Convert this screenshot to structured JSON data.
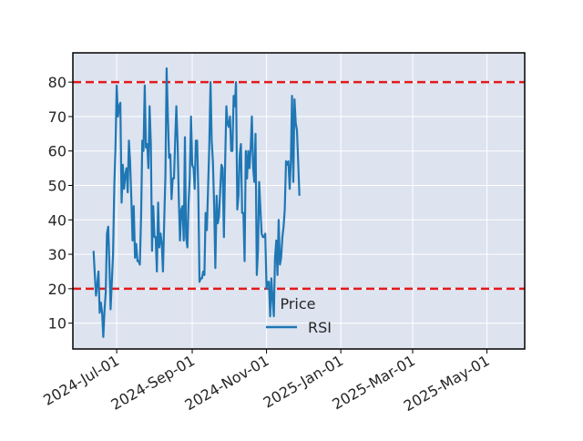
{
  "chart_data": {
    "type": "line",
    "title": "",
    "xlabel": "",
    "ylabel": "",
    "x_ticks": [
      "2024-Jul-01",
      "2024-Sep-01",
      "2024-Nov-01",
      "2025-Jan-01",
      "2025-Mar-01",
      "2025-May-01"
    ],
    "x_tick_dates": [
      "2024-07-01",
      "2024-09-01",
      "2024-11-01",
      "2025-01-01",
      "2025-03-01",
      "2025-05-01"
    ],
    "xlim": [
      "2024-05-26",
      "2025-06-01"
    ],
    "ylim": [
      2.5,
      88.5
    ],
    "y_ticks": [
      10,
      20,
      30,
      40,
      50,
      60,
      70,
      80
    ],
    "grid": true,
    "legend": {
      "title": "Price",
      "placement": "center",
      "entries": [
        "RSI"
      ]
    },
    "reference_lines": [
      {
        "y": 80,
        "style": "dashed",
        "color": "#e31a1c"
      },
      {
        "y": 20,
        "style": "dashed",
        "color": "#e31a1c"
      }
    ],
    "series": [
      {
        "name": "RSI",
        "color": "#1f77b4",
        "start_date": "2024-06-12",
        "step_days": 1,
        "values": [
          31,
          24,
          18,
          21,
          25,
          13,
          16,
          13,
          6,
          14,
          19,
          36,
          38,
          27,
          14,
          22,
          30,
          50,
          61,
          79,
          70,
          73,
          74,
          45,
          56,
          49,
          53,
          55,
          48,
          63,
          57,
          46,
          34,
          44,
          29,
          33,
          28,
          28,
          27,
          41,
          63,
          60,
          79,
          61,
          62,
          55,
          73,
          62,
          31,
          44,
          35,
          35,
          25,
          45,
          32,
          36,
          33,
          25,
          40,
          53,
          84,
          70,
          58,
          59,
          46,
          52,
          52,
          63,
          73,
          62,
          46,
          34,
          43,
          44,
          34,
          64,
          35,
          32,
          45,
          52,
          70,
          56,
          55,
          49,
          63,
          63,
          48,
          22,
          23,
          23,
          25,
          24,
          42,
          37,
          49,
          61,
          80,
          63,
          57,
          44,
          26,
          47,
          39,
          41,
          49,
          56,
          55,
          35,
          56,
          73,
          68,
          67,
          70,
          60,
          60,
          76,
          73,
          80,
          43,
          47,
          59,
          62,
          42,
          42,
          28,
          60,
          52,
          60,
          55,
          61,
          70,
          55,
          51,
          65,
          24,
          31,
          51,
          43,
          36,
          35,
          35,
          36,
          20,
          22,
          22,
          12,
          23,
          17,
          12,
          29,
          34,
          24,
          40,
          27,
          29,
          35,
          38,
          43,
          57,
          56,
          57,
          49,
          57,
          76,
          51,
          75,
          68,
          66,
          57,
          47
        ]
      }
    ]
  }
}
